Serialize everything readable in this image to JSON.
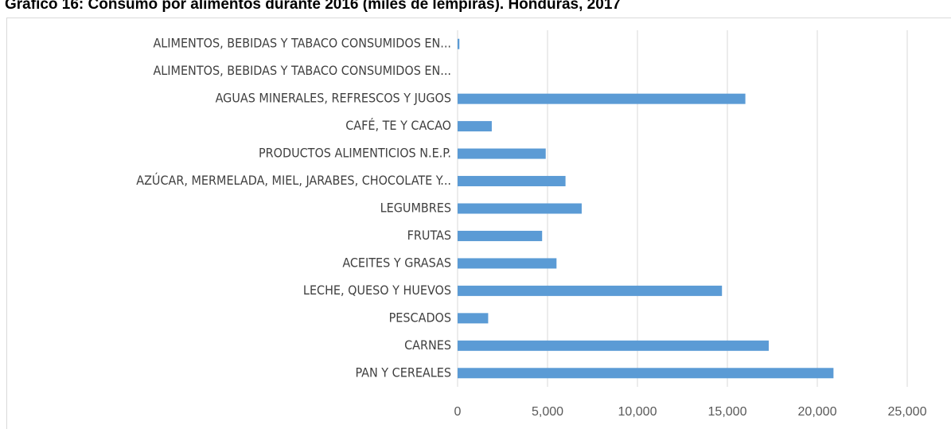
{
  "chart_data": {
    "type": "barh",
    "title": "Gráfico 16: Consumo por alimentos durante 2016 (miles de lempiras). Honduras, 2017",
    "categories": [
      "PAN Y CEREALES",
      "CARNES",
      "PESCADOS",
      "LECHE, QUESO Y HUEVOS",
      "ACEITES Y GRASAS",
      "FRUTAS",
      "LEGUMBRES",
      "AZÚCAR, MERMELADA, MIEL, JARABES, CHOCOLATE Y...",
      "PRODUCTOS ALIMENTICIOS N.E.P.",
      "CAFÉ, TE Y CACAO",
      "AGUAS MINERALES, REFRESCOS Y JUGOS",
      "ALIMENTOS, BEBIDAS Y TABACO CONSUMIDOS EN...",
      "ALIMENTOS, BEBIDAS Y TABACO CONSUMIDOS EN..."
    ],
    "values": [
      20900,
      17300,
      1700,
      14700,
      5500,
      4700,
      6900,
      6000,
      4900,
      1900,
      16000,
      0,
      100
    ],
    "color": "#5b9bd5",
    "xlim": [
      0,
      25000
    ],
    "xticks": [
      0,
      {
        "value": 5000,
        "label": "5,000"
      },
      {
        "value": 10000,
        "label": "10,000"
      },
      {
        "value": 15000,
        "label": "15,000"
      },
      {
        "value": 20000,
        "label": "20,000"
      },
      {
        "value": 25000,
        "label": "25,000"
      }
    ],
    "grid": true
  }
}
